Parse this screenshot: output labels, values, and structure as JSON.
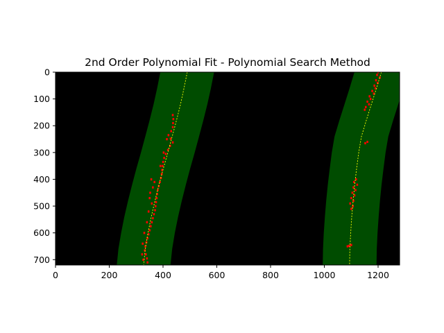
{
  "chart_data": {
    "type": "scatter",
    "title": "2nd Order Polynomial Fit - Polynomial Search Method",
    "xlim": [
      0,
      1280
    ],
    "ylim": [
      720,
      0
    ],
    "y_axis_inverted": true,
    "xticks": [
      0,
      200,
      400,
      600,
      800,
      1000,
      1200
    ],
    "yticks": [
      0,
      100,
      200,
      300,
      400,
      500,
      600,
      700
    ],
    "background_color": "#000000",
    "search_window_color": "#004c00",
    "pixel_color": "#ff0000",
    "fit_line_color": "#ffff00",
    "search_margin": 100,
    "left_lane": {
      "fit_x": [
        [
          0,
          490
        ],
        [
          60,
          478
        ],
        [
          120,
          465
        ],
        [
          180,
          450
        ],
        [
          240,
          434
        ],
        [
          300,
          418
        ],
        [
          360,
          401
        ],
        [
          420,
          385
        ],
        [
          480,
          370
        ],
        [
          540,
          356
        ],
        [
          600,
          344
        ],
        [
          660,
          334
        ],
        [
          719,
          328
        ]
      ],
      "pixels": [
        [
          160,
          436
        ],
        [
          175,
          438
        ],
        [
          190,
          437
        ],
        [
          205,
          436
        ],
        [
          220,
          430
        ],
        [
          235,
          420
        ],
        [
          248,
          428
        ],
        [
          262,
          436
        ],
        [
          275,
          426
        ],
        [
          290,
          418
        ],
        [
          305,
          410
        ],
        [
          320,
          404
        ],
        [
          335,
          400
        ],
        [
          350,
          398
        ],
        [
          365,
          396
        ],
        [
          380,
          395
        ],
        [
          395,
          392
        ],
        [
          410,
          388
        ],
        [
          425,
          384
        ],
        [
          440,
          380
        ],
        [
          455,
          378
        ],
        [
          470,
          376
        ],
        [
          485,
          374
        ],
        [
          500,
          372
        ],
        [
          515,
          370
        ],
        [
          530,
          366
        ],
        [
          545,
          362
        ],
        [
          560,
          358
        ],
        [
          575,
          354
        ],
        [
          590,
          350
        ],
        [
          605,
          346
        ],
        [
          620,
          342
        ],
        [
          635,
          338
        ],
        [
          650,
          334
        ],
        [
          665,
          332
        ],
        [
          680,
          336
        ],
        [
          695,
          340
        ],
        [
          710,
          342
        ],
        [
          400,
          356
        ],
        [
          410,
          368
        ],
        [
          430,
          362
        ],
        [
          450,
          352
        ],
        [
          470,
          350
        ],
        [
          490,
          358
        ],
        [
          520,
          346
        ],
        [
          560,
          340
        ],
        [
          600,
          330
        ],
        [
          640,
          324
        ],
        [
          680,
          322
        ],
        [
          700,
          326
        ],
        [
          250,
          414
        ],
        [
          300,
          402
        ],
        [
          350,
          390
        ]
      ]
    },
    "right_lane": {
      "fit_x": [
        [
          0,
          1212
        ],
        [
          60,
          1194
        ],
        [
          120,
          1175
        ],
        [
          180,
          1156
        ],
        [
          240,
          1138
        ],
        [
          300,
          1128
        ],
        [
          360,
          1120
        ],
        [
          420,
          1113
        ],
        [
          480,
          1107
        ],
        [
          540,
          1102
        ],
        [
          600,
          1098
        ],
        [
          660,
          1095
        ],
        [
          719,
          1094
        ]
      ],
      "pixels": [
        [
          0,
          1200
        ],
        [
          10,
          1196
        ],
        [
          20,
          1206
        ],
        [
          30,
          1192
        ],
        [
          40,
          1198
        ],
        [
          50,
          1186
        ],
        [
          60,
          1190
        ],
        [
          70,
          1178
        ],
        [
          80,
          1184
        ],
        [
          90,
          1168
        ],
        [
          100,
          1172
        ],
        [
          110,
          1160
        ],
        [
          120,
          1166
        ],
        [
          130,
          1154
        ],
        [
          140,
          1150
        ],
        [
          260,
          1160
        ],
        [
          265,
          1152
        ],
        [
          400,
          1118
        ],
        [
          410,
          1110
        ],
        [
          420,
          1122
        ],
        [
          430,
          1108
        ],
        [
          440,
          1116
        ],
        [
          450,
          1104
        ],
        [
          460,
          1112
        ],
        [
          470,
          1100
        ],
        [
          480,
          1108
        ],
        [
          490,
          1096
        ],
        [
          500,
          1106
        ],
        [
          510,
          1100
        ],
        [
          645,
          1100
        ],
        [
          648,
          1092
        ],
        [
          650,
          1086
        ]
      ]
    }
  }
}
